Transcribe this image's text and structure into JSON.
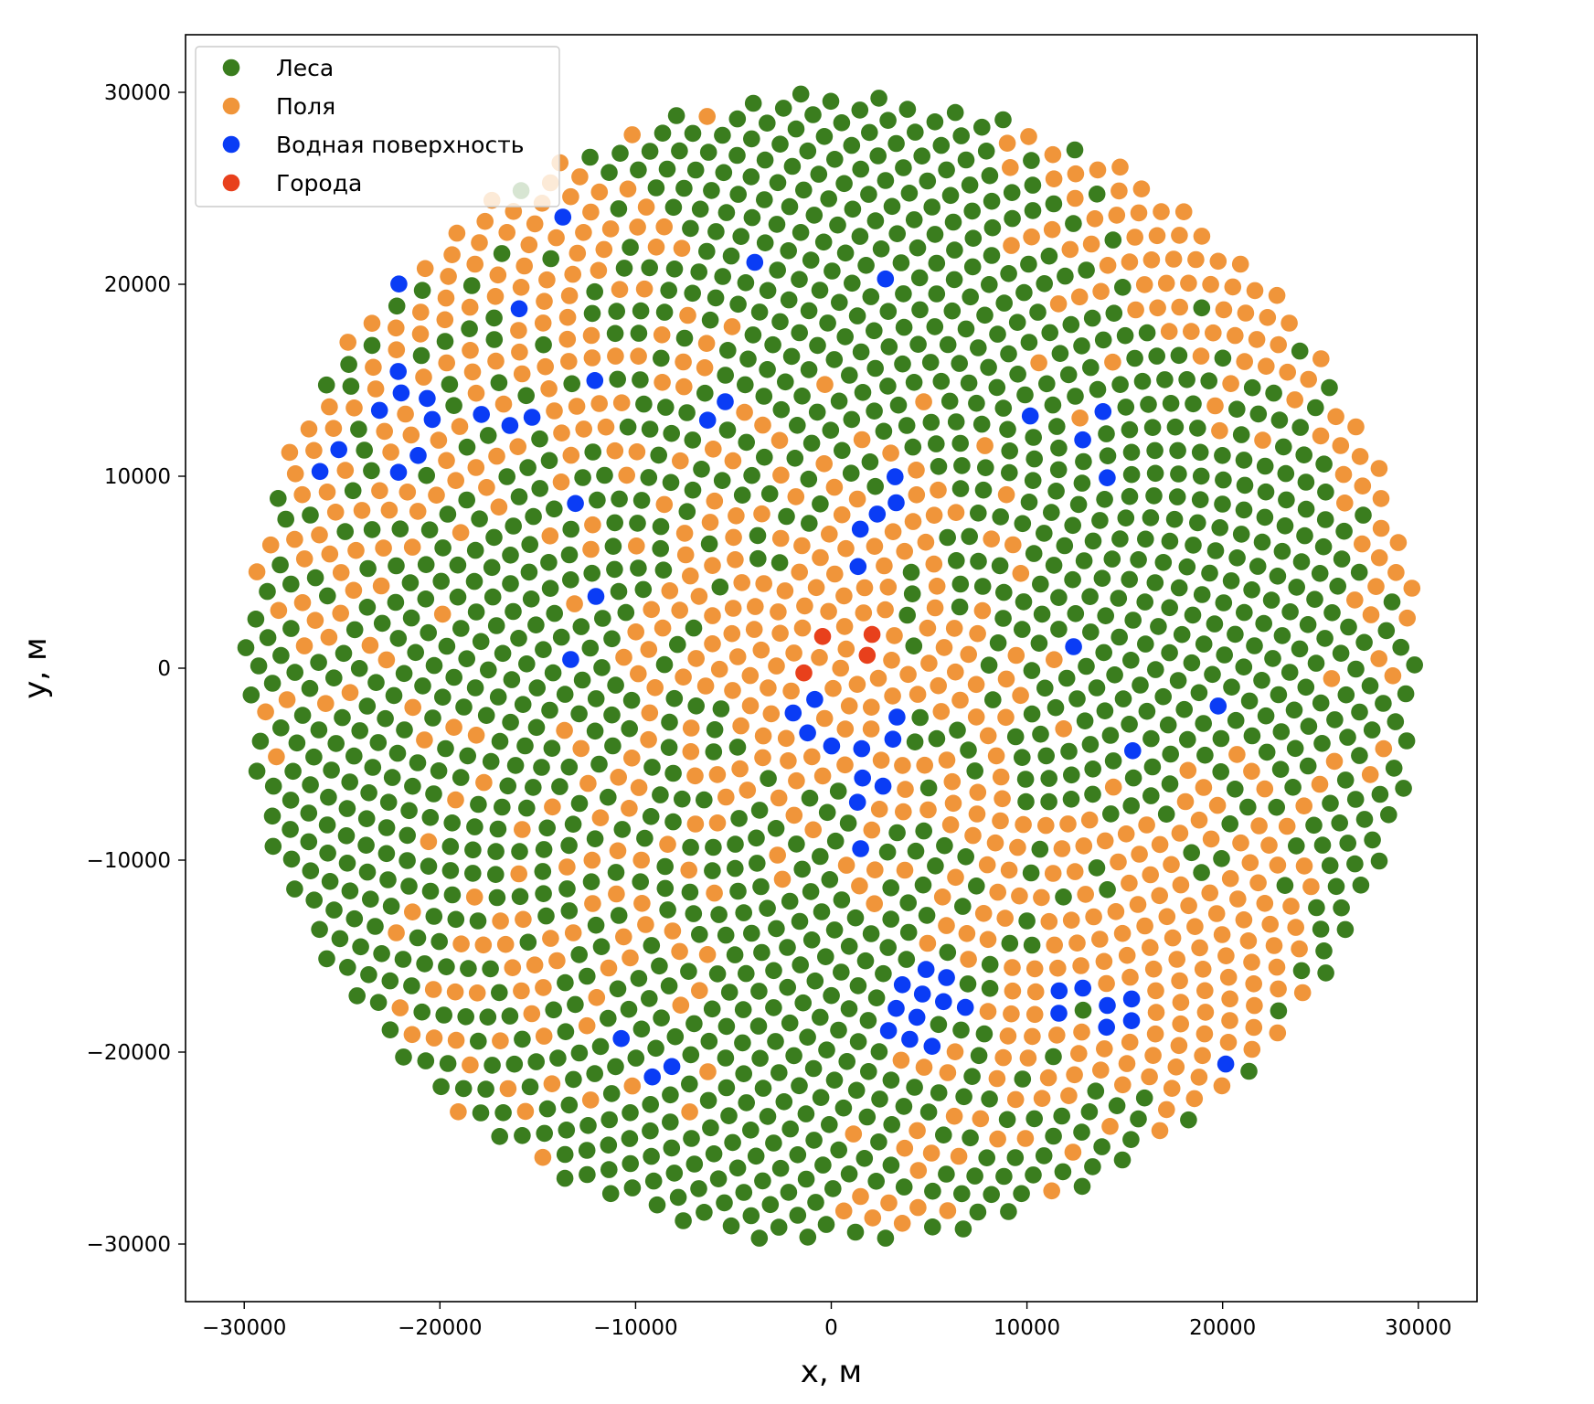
{
  "chart_data": {
    "type": "scatter",
    "title": "",
    "xlabel": "x, м",
    "ylabel": "y, м",
    "xlim": [
      -33000,
      33000
    ],
    "ylim": [
      -33000,
      33000
    ],
    "xticks": [
      -30000,
      -20000,
      -10000,
      0,
      10000,
      20000,
      30000
    ],
    "yticks": [
      -30000,
      -20000,
      -10000,
      0,
      10000,
      20000,
      30000
    ],
    "xtick_labels": [
      "−30000",
      "−20000",
      "−10000",
      "0",
      "10000",
      "20000",
      "30000"
    ],
    "ytick_labels": [
      "−30000",
      "−20000",
      "−10000",
      "0",
      "10000",
      "20000",
      "30000"
    ],
    "grid": false,
    "legend_position": "top-left",
    "domain_radius": 30000,
    "point_count": 2000,
    "layout_pattern": "sunflower",
    "series": [
      {
        "name": "Леса",
        "color": "#3a7d1e",
        "note": "majority of points; all points not listed in other series"
      },
      {
        "name": "Поля",
        "color": "#f0953a",
        "approx_fraction": 0.42
      },
      {
        "name": "Водная поверхность",
        "color": "#0a3cf5",
        "points": [
          [
            -14000,
            23600
          ],
          [
            -4400,
            21700
          ],
          [
            -21700,
            20700
          ],
          [
            -15300,
            18600
          ],
          [
            3000,
            19800
          ],
          [
            -21800,
            15200
          ],
          [
            -22400,
            14200
          ],
          [
            -21200,
            14500
          ],
          [
            -12600,
            15000
          ],
          [
            -23000,
            13200
          ],
          [
            -20000,
            13000
          ],
          [
            -17500,
            13300
          ],
          [
            -16700,
            13100
          ],
          [
            -15500,
            12900
          ],
          [
            -6200,
            13100
          ],
          [
            -5400,
            13600
          ],
          [
            9800,
            12900
          ],
          [
            13400,
            12900
          ],
          [
            12800,
            12100
          ],
          [
            -26200,
            10800
          ],
          [
            -25000,
            11500
          ],
          [
            -21400,
            11200
          ],
          [
            -21800,
            9900
          ],
          [
            -12700,
            9200
          ],
          [
            13400,
            10200
          ],
          [
            2900,
            9500
          ],
          [
            3400,
            8400
          ],
          [
            1700,
            7700
          ],
          [
            2600,
            7700
          ],
          [
            1700,
            5500
          ],
          [
            -12400,
            3200
          ],
          [
            -13200,
            1100
          ],
          [
            11800,
            1400
          ],
          [
            -500,
            -1300
          ],
          [
            2700,
            -2400
          ],
          [
            -2000,
            -2900
          ],
          [
            -1000,
            -3500
          ],
          [
            -100,
            -3600
          ],
          [
            2900,
            -4000
          ],
          [
            2000,
            -4500
          ],
          [
            15900,
            -4100
          ],
          [
            19700,
            -1800
          ],
          [
            1500,
            -5500
          ],
          [
            2100,
            -6600
          ],
          [
            1700,
            -7500
          ],
          [
            1100,
            -9200
          ],
          [
            3600,
            -15900
          ],
          [
            4600,
            -15600
          ],
          [
            6400,
            -16300
          ],
          [
            3800,
            -17200
          ],
          [
            4400,
            -16600
          ],
          [
            5600,
            -16300
          ],
          [
            4900,
            -17800
          ],
          [
            3600,
            -18100
          ],
          [
            4500,
            -18600
          ],
          [
            6100,
            -17100
          ],
          [
            4300,
            -19500
          ],
          [
            11100,
            -17000
          ],
          [
            11900,
            -17700
          ],
          [
            12800,
            -16900
          ],
          [
            13600,
            -17100
          ],
          [
            15000,
            -17300
          ],
          [
            14100,
            -18100
          ],
          [
            15500,
            -18600
          ],
          [
            20500,
            -20500
          ],
          [
            -10500,
            -19200
          ],
          [
            -9200,
            -21000
          ],
          [
            -8300,
            -21200
          ]
        ]
      },
      {
        "name": "Города",
        "color": "#e8401c",
        "points": [
          [
            -500,
            1700
          ],
          [
            2000,
            1300
          ],
          [
            2000,
            300
          ],
          [
            -1100,
            -400
          ]
        ]
      }
    ]
  }
}
